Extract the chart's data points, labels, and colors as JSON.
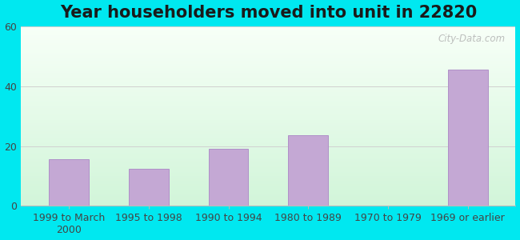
{
  "title": "Year householders moved into unit in 22820",
  "categories": [
    "1999 to March\n2000",
    "1995 to 1998",
    "1990 to 1994",
    "1980 to 1989",
    "1970 to 1979",
    "1969 or earlier"
  ],
  "values": [
    15.5,
    12.5,
    19.0,
    23.5,
    0,
    45.5
  ],
  "bar_color": "#c4a8d4",
  "bar_edge_color": "#b090c8",
  "ylim": [
    0,
    60
  ],
  "yticks": [
    0,
    20,
    40,
    60
  ],
  "background_outer": "#00e8f0",
  "grid_color": "#d0d0d0",
  "title_fontsize": 15,
  "tick_fontsize": 9,
  "watermark": "City-Data.com"
}
